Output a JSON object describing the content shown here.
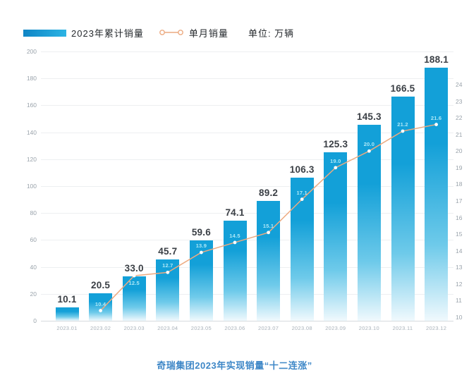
{
  "page": {
    "caption": "奇瑞集团2023年实现销量“十二连涨”"
  },
  "legend": {
    "bar_series_label": "2023年累计销量",
    "line_series_label": "单月销量",
    "unit_label": "单位: 万辆"
  },
  "colors": {
    "swatch_left": "#0f85c5",
    "swatch_right": "#2cb4e4",
    "legend_text": "#25292d",
    "bar_top": "#13a0d8",
    "bar_mid": "#6ecaea",
    "bar_fade": "#f0f9fd",
    "line": "#ecaa80",
    "marker": "#ffffff",
    "bar_value_label": "#3a3f45",
    "line_value_label": "#aee8f7",
    "axis_text": "#9aa3ab",
    "xaxis_text": "#a9b2ba",
    "gridline": "#edeff1",
    "zero_line": "#d7dbdf",
    "caption": "#3e87c7"
  },
  "chart_data": {
    "type": "bar",
    "subtype": "bar with overlaid line, dual y-axes",
    "title": "奇瑞集团2023年实现销量“十二连涨”",
    "unit": "万辆",
    "grid": true,
    "legend_position": "top-left",
    "categories": [
      "2023.01",
      "2023.02",
      "2023.03",
      "2023.04",
      "2023.05",
      "2023.06",
      "2023.07",
      "2023.08",
      "2023.09",
      "2023.10",
      "2023.11",
      "2023.12"
    ],
    "series": [
      {
        "name": "2023年累计销量",
        "type": "bar",
        "axis": "left",
        "values": [
          10.1,
          20.5,
          33.0,
          45.7,
          59.6,
          74.1,
          89.2,
          106.3,
          125.3,
          145.3,
          166.5,
          188.1
        ]
      },
      {
        "name": "单月销量",
        "type": "line",
        "axis": "right",
        "values": [
          null,
          10.4,
          12.5,
          12.7,
          13.9,
          14.5,
          15.1,
          17.1,
          19.0,
          20.0,
          21.2,
          21.6
        ]
      }
    ],
    "left_axis": {
      "min": 0,
      "max": 200,
      "step": 20
    },
    "right_axis": {
      "min": 10,
      "max": 24,
      "step": 1
    }
  }
}
